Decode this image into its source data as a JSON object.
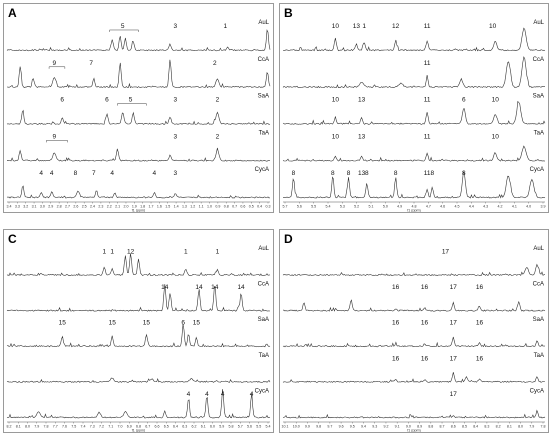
{
  "panels": [
    {
      "id": "A",
      "samples": [
        "AuL",
        "CcA",
        "SaA",
        "TaA",
        "CycA"
      ],
      "axis_ticks": [
        "3.4",
        "3.3",
        "3.2",
        "3.1",
        "3.0",
        "2.9",
        "2.8",
        "2.7",
        "2.6",
        "2.5",
        "2.4",
        "2.3",
        "2.2",
        "2.1",
        "2.0",
        "1.9",
        "1.8",
        "1.7",
        "1.6",
        "1.5",
        "1.4",
        "1.3",
        "1.2",
        "1.1",
        "1.0",
        "0.9",
        "0.8",
        "0.7",
        "0.6",
        "0.5",
        "0.4",
        "0.3"
      ],
      "axis_unit": "f1 (ppm)",
      "annotations": [
        {
          "track": 0,
          "text": "5",
          "fx": 0.44,
          "br": [
            0.39,
            0.5
          ]
        },
        {
          "track": 0,
          "text": "3",
          "fx": 0.64
        },
        {
          "track": 0,
          "text": "1",
          "fx": 0.83
        },
        {
          "track": 1,
          "text": "9",
          "fx": 0.18,
          "br": [
            0.16,
            0.22
          ]
        },
        {
          "track": 1,
          "text": "7",
          "fx": 0.32
        },
        {
          "track": 1,
          "text": "2",
          "fx": 0.79
        },
        {
          "track": 2,
          "text": "6",
          "fx": 0.21
        },
        {
          "track": 2,
          "text": "6",
          "fx": 0.38
        },
        {
          "track": 2,
          "text": "5",
          "fx": 0.47,
          "br": [
            0.42,
            0.53
          ]
        },
        {
          "track": 2,
          "text": "3",
          "fx": 0.64
        },
        {
          "track": 2,
          "text": "2",
          "fx": 0.8
        },
        {
          "track": 3,
          "text": "9",
          "fx": 0.18,
          "br": [
            0.15,
            0.23
          ]
        },
        {
          "track": 3,
          "text": "3",
          "fx": 0.64
        },
        {
          "track": 3,
          "text": "2",
          "fx": 0.8
        },
        {
          "track": 4,
          "text": "4",
          "fx": 0.13
        },
        {
          "track": 4,
          "text": "4",
          "fx": 0.17
        },
        {
          "track": 4,
          "text": "8",
          "fx": 0.26
        },
        {
          "track": 4,
          "text": "7",
          "fx": 0.33
        },
        {
          "track": 4,
          "text": "4",
          "fx": 0.4
        },
        {
          "track": 4,
          "text": "4",
          "fx": 0.56
        },
        {
          "track": 4,
          "text": "3",
          "fx": 0.64
        }
      ]
    },
    {
      "id": "B",
      "samples": [
        "AuL",
        "CcA",
        "SaA",
        "TaA",
        "CycA"
      ],
      "axis_ticks": [
        "5.7",
        "5.6",
        "5.5",
        "5.4",
        "5.3",
        "5.2",
        "5.1",
        "5.0",
        "4.9",
        "4.8",
        "4.7",
        "4.6",
        "4.5",
        "4.4",
        "4.3",
        "4.2",
        "4.1",
        "4.0",
        "3.9"
      ],
      "axis_unit": "f1 (ppm)",
      "annotations": [
        {
          "track": 0,
          "text": "10",
          "fx": 0.2
        },
        {
          "track": 0,
          "text": "13",
          "fx": 0.28
        },
        {
          "track": 0,
          "text": "1",
          "fx": 0.31
        },
        {
          "track": 0,
          "text": "12",
          "fx": 0.43
        },
        {
          "track": 0,
          "text": "11",
          "fx": 0.55
        },
        {
          "track": 0,
          "text": "10",
          "fx": 0.8
        },
        {
          "track": 1,
          "text": "11",
          "fx": 0.55
        },
        {
          "track": 2,
          "text": "10",
          "fx": 0.2
        },
        {
          "track": 2,
          "text": "13",
          "fx": 0.3
        },
        {
          "track": 2,
          "text": "11",
          "fx": 0.55
        },
        {
          "track": 2,
          "text": "6",
          "fx": 0.69
        },
        {
          "track": 2,
          "text": "10",
          "fx": 0.81
        },
        {
          "track": 3,
          "text": "10",
          "fx": 0.2
        },
        {
          "track": 3,
          "text": "13",
          "fx": 0.3
        },
        {
          "track": 3,
          "text": "11",
          "fx": 0.55
        },
        {
          "track": 3,
          "text": "10",
          "fx": 0.81
        },
        {
          "track": 4,
          "text": "8",
          "fx": 0.04
        },
        {
          "track": 4,
          "text": "8",
          "fx": 0.19
        },
        {
          "track": 4,
          "text": "8",
          "fx": 0.25
        },
        {
          "track": 4,
          "text": "13",
          "fx": 0.3
        },
        {
          "track": 4,
          "text": "8",
          "fx": 0.32
        },
        {
          "track": 4,
          "text": "8",
          "fx": 0.43
        },
        {
          "track": 4,
          "text": "11",
          "fx": 0.55
        },
        {
          "track": 4,
          "text": "8",
          "fx": 0.57
        },
        {
          "track": 4,
          "text": "8",
          "fx": 0.69
        }
      ]
    },
    {
      "id": "C",
      "samples": [
        "AuL",
        "CcA",
        "SaA",
        "TaA",
        "CycA"
      ],
      "axis_ticks": [
        "8.2",
        "8.1",
        "8.0",
        "7.9",
        "7.8",
        "7.7",
        "7.6",
        "7.5",
        "7.4",
        "7.3",
        "7.2",
        "7.1",
        "7.0",
        "6.9",
        "6.8",
        "6.7",
        "6.6",
        "6.5",
        "6.4",
        "6.3",
        "6.2",
        "6.1",
        "6.0",
        "5.9",
        "5.8",
        "5.7",
        "5.6",
        "5.5",
        "5.4"
      ],
      "axis_unit": "f1 (ppm)",
      "annotations": [
        {
          "track": 0,
          "text": "1",
          "fx": 0.37
        },
        {
          "track": 0,
          "text": "1",
          "fx": 0.4
        },
        {
          "track": 0,
          "text": "12",
          "fx": 0.47
        },
        {
          "track": 0,
          "text": "1",
          "fx": 0.68
        },
        {
          "track": 0,
          "text": "1",
          "fx": 0.8
        },
        {
          "track": 1,
          "text": "14",
          "fx": 0.6
        },
        {
          "track": 1,
          "text": "14",
          "fx": 0.73
        },
        {
          "track": 1,
          "text": "14",
          "fx": 0.79
        },
        {
          "track": 1,
          "text": "14",
          "fx": 0.89
        },
        {
          "track": 2,
          "text": "15",
          "fx": 0.21
        },
        {
          "track": 2,
          "text": "15",
          "fx": 0.4
        },
        {
          "track": 2,
          "text": "15",
          "fx": 0.53
        },
        {
          "track": 2,
          "text": "6",
          "fx": 0.67
        },
        {
          "track": 2,
          "text": "15",
          "fx": 0.72
        },
        {
          "track": 4,
          "text": "4",
          "fx": 0.69
        },
        {
          "track": 4,
          "text": "4",
          "fx": 0.76
        },
        {
          "track": 4,
          "text": "4",
          "fx": 0.82
        },
        {
          "track": 4,
          "text": "4",
          "fx": 0.93
        }
      ]
    },
    {
      "id": "D",
      "samples": [
        "AuL",
        "CcA",
        "SaA",
        "TaA",
        "CycA"
      ],
      "axis_ticks": [
        "10.1",
        "10.0",
        "9.9",
        "9.8",
        "9.7",
        "9.6",
        "9.5",
        "9.4",
        "9.3",
        "9.2",
        "9.1",
        "9.0",
        "8.9",
        "8.8",
        "8.7",
        "8.6",
        "8.5",
        "8.4",
        "8.3",
        "8.2",
        "8.1",
        "8.0",
        "7.9",
        "7.8"
      ],
      "axis_unit": "f1 (ppm)",
      "annotations": [
        {
          "track": 0,
          "text": "17",
          "fx": 0.62
        },
        {
          "track": 1,
          "text": "16",
          "fx": 0.43
        },
        {
          "track": 1,
          "text": "16",
          "fx": 0.54
        },
        {
          "track": 1,
          "text": "17",
          "fx": 0.65
        },
        {
          "track": 1,
          "text": "16",
          "fx": 0.75
        },
        {
          "track": 2,
          "text": "16",
          "fx": 0.43
        },
        {
          "track": 2,
          "text": "16",
          "fx": 0.54
        },
        {
          "track": 2,
          "text": "17",
          "fx": 0.65
        },
        {
          "track": 2,
          "text": "16",
          "fx": 0.75
        },
        {
          "track": 3,
          "text": "16",
          "fx": 0.43
        },
        {
          "track": 3,
          "text": "16",
          "fx": 0.54
        },
        {
          "track": 3,
          "text": "17",
          "fx": 0.65
        },
        {
          "track": 3,
          "text": "16",
          "fx": 0.75
        },
        {
          "track": 4,
          "text": "17",
          "fx": 0.65
        }
      ]
    }
  ]
}
